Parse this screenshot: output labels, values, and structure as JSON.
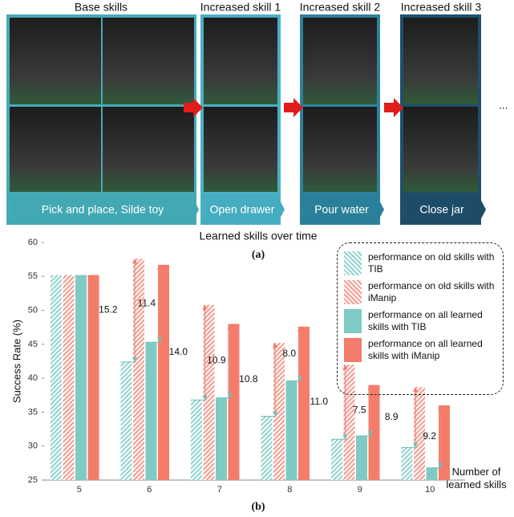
{
  "panel_a": {
    "columns": [
      {
        "title": "Base skills",
        "caption": "Pick and place, Silde toy"
      },
      {
        "title": "Increased skill 1",
        "caption": "Open drawer"
      },
      {
        "title": "Increased skill 2",
        "caption": "Pour water"
      },
      {
        "title": "Increased skill 3",
        "caption": "Close jar"
      }
    ],
    "ellipsis": "...",
    "subtitle": "Learned skills over time",
    "label": "(a)"
  },
  "chart_data": {
    "type": "bar",
    "label": "(b)",
    "y_label": "Success Rate (%)",
    "x_label": "Number of learned skills",
    "categories": [
      "5",
      "6",
      "7",
      "8",
      "9",
      "10"
    ],
    "ylim": [
      25,
      60
    ],
    "yticks": [
      25,
      30,
      35,
      40,
      45,
      50,
      55,
      60
    ],
    "grid": false,
    "legend": "upper right",
    "series": [
      {
        "name": "performance on old skills with TIB",
        "color": "#8fd3cc",
        "hatch": true,
        "values": [
          55.2,
          42.4,
          36.8,
          34.4,
          31.0,
          29.8
        ]
      },
      {
        "name": "performance on old skills with iManip",
        "color": "#f5998b",
        "hatch": true,
        "values": [
          55.2,
          57.6,
          50.8,
          45.2,
          42.0,
          38.7
        ]
      },
      {
        "name": "performance on all learned skills with TIB",
        "color": "#7fcbc3",
        "hatch": false,
        "values": [
          55.2,
          45.3,
          37.1,
          39.6,
          31.5,
          26.8
        ]
      },
      {
        "name": "performance on all learned skills with iManip",
        "color": "#f47c6b",
        "hatch": false,
        "values": [
          55.2,
          56.7,
          48.0,
          47.6,
          39.0,
          36.0
        ]
      }
    ],
    "gap_labels_old": [
      null,
      "15.2",
      "14.0",
      "10.8",
      "11.0",
      "8.9"
    ],
    "gap_labels_all": [
      null,
      "11.4",
      "10.9",
      "8.0",
      "7.5",
      "9.2"
    ]
  }
}
